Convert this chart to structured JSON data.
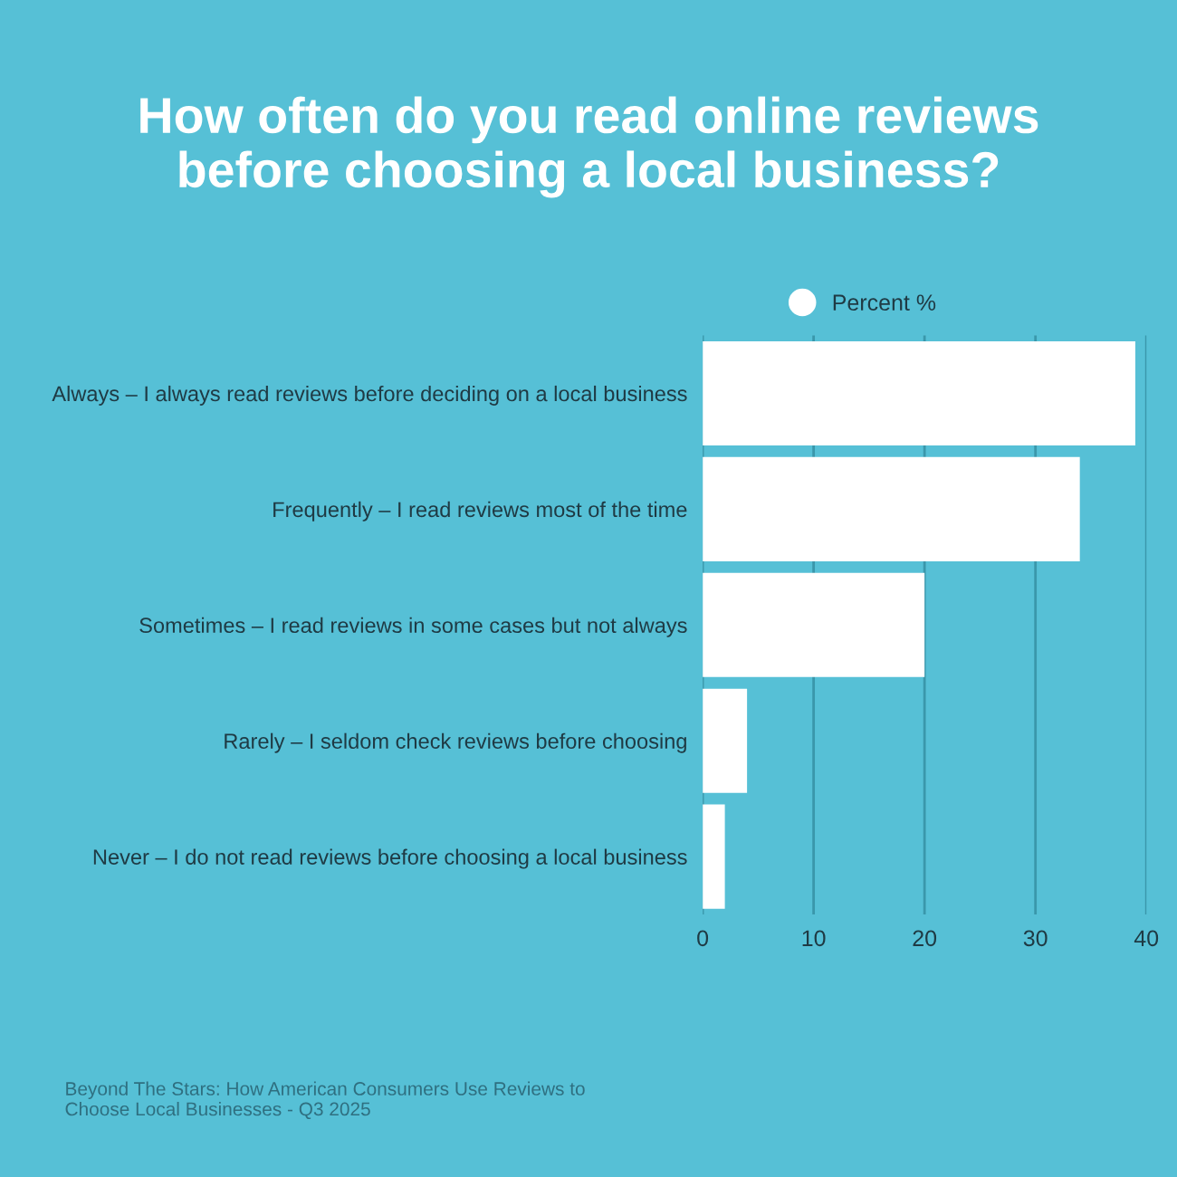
{
  "chart_data": {
    "type": "bar",
    "orientation": "horizontal",
    "title": "How often do you read online reviews\nbefore choosing a local business?",
    "categories": [
      "Always – I always read reviews before deciding on a local business",
      "Frequently – I read reviews most of the time",
      "Sometimes – I read reviews in some cases but not always",
      "Rarely – I seldom check reviews before choosing",
      "Never – I do not read reviews before choosing a local business"
    ],
    "series": [
      {
        "name": "Percent %",
        "color": "#ffffff",
        "values": [
          39,
          34,
          20,
          4,
          2
        ]
      }
    ],
    "xlim": [
      0,
      40
    ],
    "xticks": [
      0,
      10,
      20,
      30,
      40
    ],
    "grid": "x",
    "legend": "top",
    "annotations": [
      "Beyond The Stars: How American Consumers Use Reviews to\nChoose Local Businesses - Q3 2025"
    ]
  }
}
